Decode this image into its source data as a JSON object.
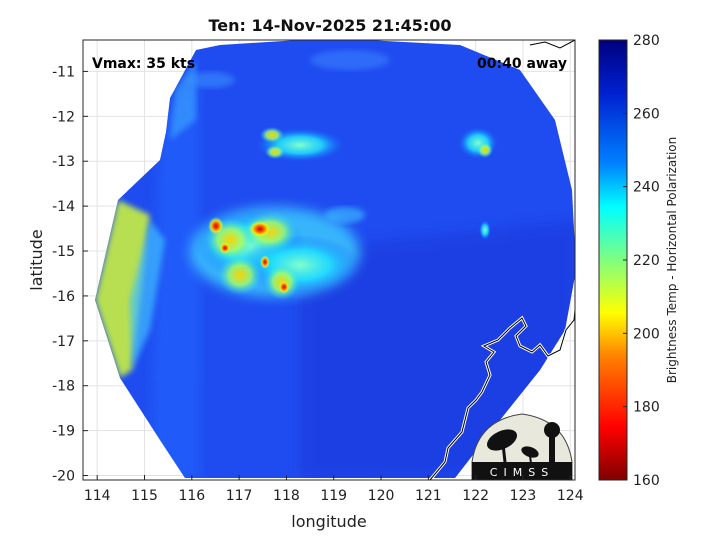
{
  "title": "Ten: 14-Nov-2025 21:45:00",
  "vmax_label": "Vmax: 35 kts",
  "time_away_label": "00:40 away",
  "xlabel": "longitude",
  "ylabel": "latitude",
  "colorbar": {
    "label": "Brightness Temp - Horizontal Polarization",
    "min": 160,
    "max": 280,
    "ticks": [
      "280",
      "260",
      "240",
      "220",
      "200",
      "180",
      "160"
    ]
  },
  "x_ticks": [
    "114",
    "115",
    "116",
    "117",
    "118",
    "119",
    "120",
    "121",
    "122",
    "123",
    "124"
  ],
  "y_ticks": [
    "-11",
    "-12",
    "-13",
    "-14",
    "-15",
    "-16",
    "-17",
    "-18",
    "-19",
    "-20"
  ],
  "logo": {
    "text": "CIMSS"
  },
  "chart_data": {
    "type": "heatmap",
    "title": "Ten: 14-Nov-2025 21:45:00",
    "xlabel": "longitude",
    "ylabel": "latitude",
    "xlim": [
      113.7,
      124.1
    ],
    "ylim": [
      -20.1,
      -10.3
    ],
    "colorbar_range": [
      160,
      280
    ],
    "colorbar_label": "Brightness Temp - Horizontal Polarization",
    "background_brightness_temp": 262,
    "features": [
      {
        "name": "convective core",
        "lon": 116.5,
        "lat": -14.3,
        "min_temp": 176
      },
      {
        "name": "convective core",
        "lon": 117.4,
        "lat": -14.4,
        "min_temp": 178
      },
      {
        "name": "convective core",
        "lon": 116.7,
        "lat": -14.8,
        "min_temp": 190
      },
      {
        "name": "convective core",
        "lon": 117.5,
        "lat": -15.1,
        "min_temp": 190
      },
      {
        "name": "convective core",
        "lon": 117.9,
        "lat": -15.8,
        "min_temp": 192
      },
      {
        "name": "rain band",
        "lon": 117.5,
        "lat": -12.6,
        "min_temp": 225
      },
      {
        "name": "rain band",
        "lon": 122.2,
        "lat": -12.4,
        "min_temp": 222
      },
      {
        "name": "swath edge",
        "lon": 114.6,
        "lat": -16.3,
        "min_temp": 215
      }
    ]
  }
}
